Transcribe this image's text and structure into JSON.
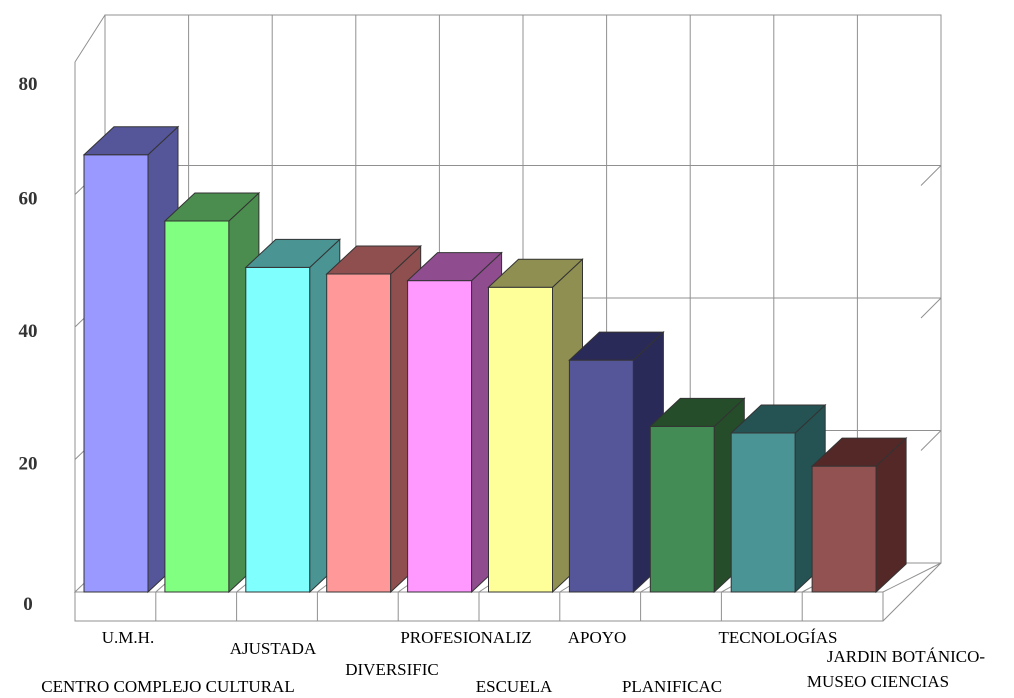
{
  "chart_data": {
    "type": "bar",
    "bar_style": "3d",
    "categories": [
      "U.M.H.",
      "CENTRO COMPLEJO CULTURAL",
      "AJUSTADA",
      "DIVERSIFIC",
      "PROFESIONALIZ",
      "ESCUELA",
      "APOYO",
      "PLANIFICAC",
      "TECNOLOGÍAS",
      "JARDIN BOTÁNICO-MUSEO CIENCIAS"
    ],
    "category_label_lines": [
      [
        "U.M.H."
      ],
      [
        "CENTRO COMPLEJO CULTURAL"
      ],
      [
        "AJUSTADA"
      ],
      [
        "DIVERSIFIC"
      ],
      [
        "PROFESIONALIZ"
      ],
      [
        "ESCUELA"
      ],
      [
        "APOYO"
      ],
      [
        "PLANIFICAC"
      ],
      [
        "TECNOLOGÍAS"
      ],
      [
        "JARDIN BOTÁNICO-",
        "MUSEO CIENCIAS"
      ]
    ],
    "values": [
      66,
      56,
      49,
      48,
      47,
      46,
      35,
      25,
      24,
      19
    ],
    "colors": [
      "#9999ff",
      "#80ff80",
      "#80ffff",
      "#ff9999",
      "#ff99ff",
      "#ffff99",
      "#555599",
      "#448c55",
      "#4a9496",
      "#935252"
    ],
    "side_colors": [
      "#55559a",
      "#4b8d4e",
      "#4a9494",
      "#8f4f4f",
      "#8f4c8f",
      "#8f8f52",
      "#2a2a58",
      "#254d2a",
      "#255253",
      "#552828"
    ],
    "y_ticks": [
      "0",
      "20",
      "40",
      "60",
      "80"
    ],
    "ylim": [
      0,
      80
    ],
    "title": "",
    "xlabel": "",
    "ylabel": "",
    "grid": true,
    "legend": "none"
  }
}
